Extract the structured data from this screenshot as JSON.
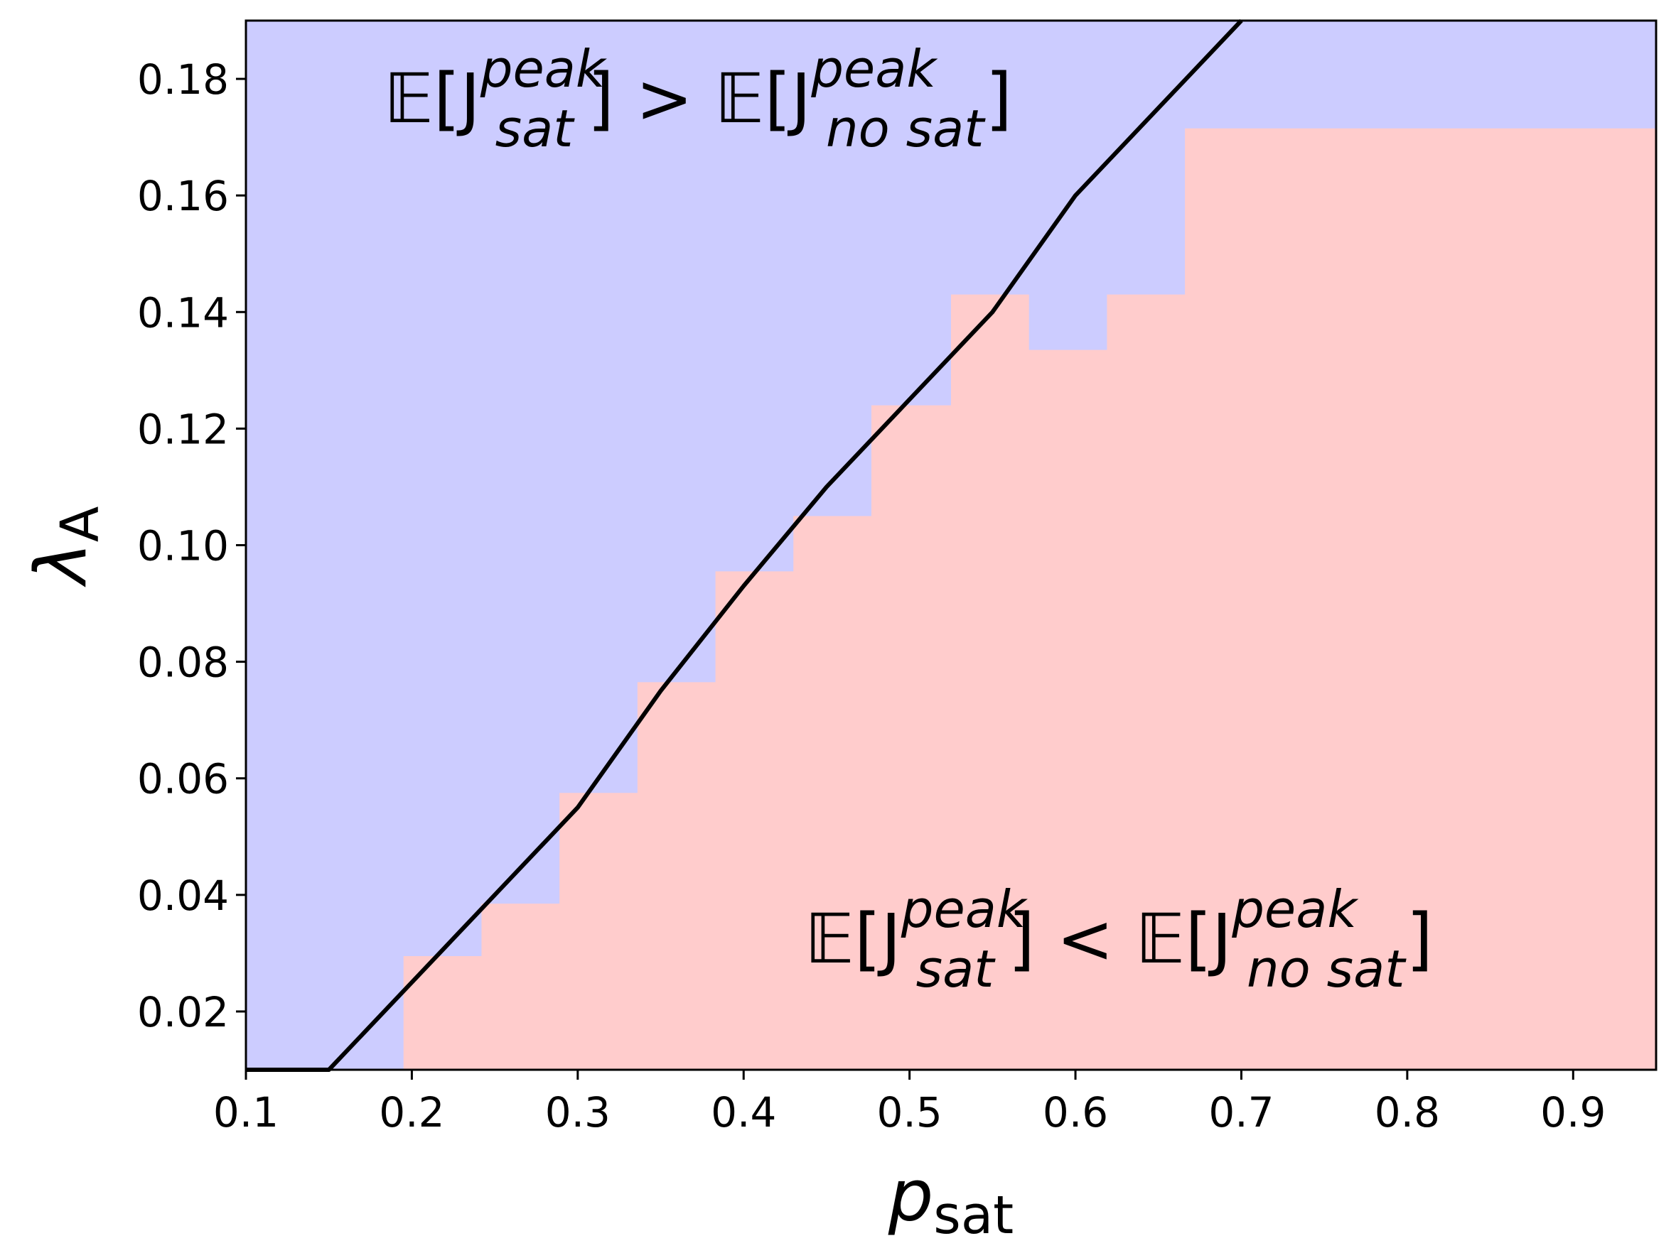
{
  "chart_data": {
    "type": "heatmap",
    "xlabel": {
      "main": "p",
      "sub": "sat"
    },
    "ylabel": {
      "main": "λ",
      "sub": "A"
    },
    "xlim": [
      0.1,
      0.95
    ],
    "ylim": [
      0.01,
      0.19
    ],
    "x_ticks": [
      "0.1",
      "0.2",
      "0.3",
      "0.4",
      "0.5",
      "0.6",
      "0.7",
      "0.8",
      "0.9"
    ],
    "x_tick_values": [
      0.1,
      0.2,
      0.3,
      0.4,
      0.5,
      0.6,
      0.7,
      0.8,
      0.9
    ],
    "y_ticks": [
      "0.02",
      "0.04",
      "0.06",
      "0.08",
      "0.10",
      "0.12",
      "0.14",
      "0.16",
      "0.18"
    ],
    "y_tick_values": [
      0.02,
      0.04,
      0.06,
      0.08,
      0.1,
      0.12,
      0.14,
      0.16,
      0.18
    ],
    "colors": {
      "sat_greater": "#ccccff",
      "sat_less": "#ffcccc",
      "boundary": "#000000"
    },
    "regions": [
      {
        "name": "sat_greater",
        "label": {
          "lhs": "𝔼[J",
          "sup": "peak",
          "sub": "sat",
          "op": "] > 𝔼[J",
          "sup2": "peak",
          "sub2": "no sat",
          "close": "]"
        }
      },
      {
        "name": "sat_less",
        "label": {
          "lhs": "𝔼[J",
          "sup": "peak",
          "sub": "sat",
          "op": "] < 𝔼[J",
          "sup2": "peak",
          "sub2": "no sat",
          "close": "]"
        }
      }
    ],
    "heatmap_boundary_steps": [
      {
        "p_sat": 0.195,
        "lambda_A": 0.0295
      },
      {
        "p_sat": 0.242,
        "lambda_A": 0.0385
      },
      {
        "p_sat": 0.289,
        "lambda_A": 0.0575
      },
      {
        "p_sat": 0.336,
        "lambda_A": 0.0765
      },
      {
        "p_sat": 0.383,
        "lambda_A": 0.0955
      },
      {
        "p_sat": 0.43,
        "lambda_A": 0.105
      },
      {
        "p_sat": 0.477,
        "lambda_A": 0.124
      },
      {
        "p_sat": 0.525,
        "lambda_A": 0.143
      },
      {
        "p_sat": 0.572,
        "lambda_A": 0.1335
      },
      {
        "p_sat": 0.619,
        "lambda_A": 0.143
      },
      {
        "p_sat": 0.666,
        "lambda_A": 0.1715
      },
      {
        "p_sat": 0.713,
        "lambda_A": 0.1715
      },
      {
        "p_sat": 0.95,
        "lambda_A": 0.19
      }
    ],
    "boundary_line": {
      "x": [
        0.1,
        0.15,
        0.2,
        0.25,
        0.3,
        0.35,
        0.4,
        0.45,
        0.5,
        0.55,
        0.6,
        0.65,
        0.7
      ],
      "y": [
        0.01,
        0.01,
        0.025,
        0.04,
        0.055,
        0.075,
        0.093,
        0.11,
        0.125,
        0.14,
        0.16,
        0.175,
        0.19
      ]
    }
  }
}
